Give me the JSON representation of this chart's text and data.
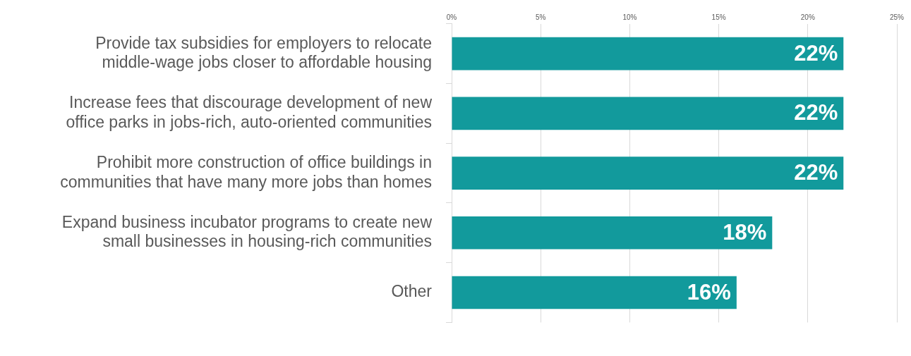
{
  "chart_data": {
    "type": "bar",
    "orientation": "horizontal",
    "categories": [
      "Provide tax subsidies for employers to relocate middle-wage jobs closer to affordable housing",
      "Increase fees that discourage development of new office parks in jobs-rich, auto-oriented communities",
      "Prohibit more construction of office buildings in communities that have many more jobs than homes",
      "Expand business incubator programs to create new small businesses in housing-rich communities",
      "Other"
    ],
    "values": [
      22,
      22,
      22,
      18,
      16
    ],
    "value_labels": [
      "22%",
      "22%",
      "22%",
      "18%",
      "16%"
    ],
    "color": "#129a9c",
    "xlim": [
      0,
      25
    ],
    "xticks": [
      {
        "value": 0,
        "label": "0%"
      },
      {
        "value": 5,
        "label": "5%"
      },
      {
        "value": 10,
        "label": "10%"
      },
      {
        "value": 15,
        "label": "15%"
      },
      {
        "value": 20,
        "label": "20%"
      },
      {
        "value": 25,
        "label": "25%"
      }
    ],
    "grid": "x",
    "legend": false
  }
}
